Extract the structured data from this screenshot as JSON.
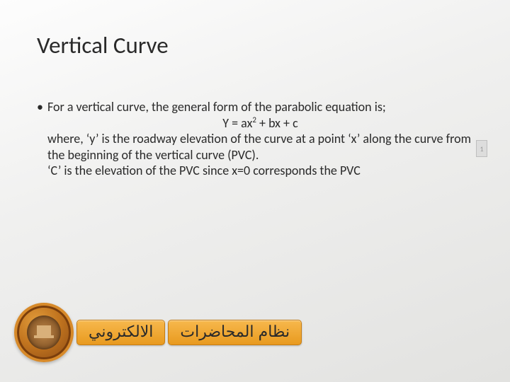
{
  "title": "Vertical Curve",
  "bullet_glyph": "•",
  "body": {
    "line1": "For a vertical curve, the general form of the parabolic equation is;",
    "eq_pre": "Y = ax",
    "eq_sup": "2",
    "eq_post": " + bx + c",
    "line3": "where, ‘y’ is the roadway elevation of the curve at a point ‘x’ along the curve from the beginning of the vertical curve (PVC).",
    "line4": "‘C’ is the elevation of the PVC since x=0 corresponds the PVC"
  },
  "footer": {
    "button1": "الالكتروني",
    "button2": "نظام المحاضرات"
  },
  "page_marker": "1"
}
